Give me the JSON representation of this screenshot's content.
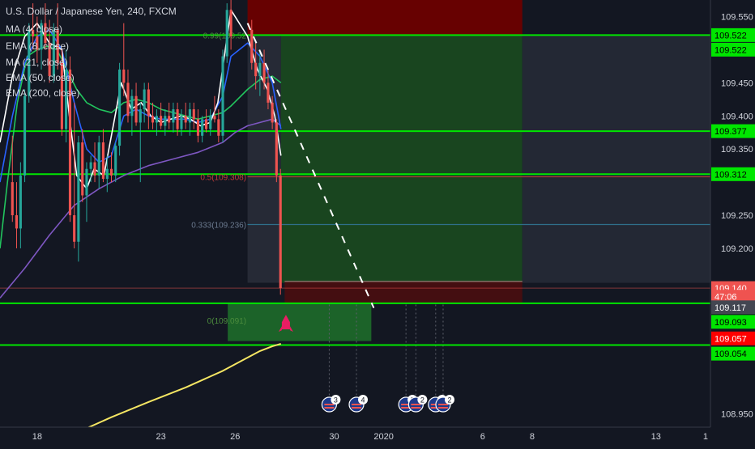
{
  "chart_data": {
    "type": "candlestick",
    "symbol_title": "U.S. Dollar / Japanese Yen, 240, FXCM",
    "indicators": [
      {
        "label": "MA (4, close)",
        "color": "#ffffff"
      },
      {
        "label": "EMA (8, close)",
        "color": "#2962ff"
      },
      {
        "label": "MA (21, close)",
        "color": "#22c55e"
      },
      {
        "label": "EMA (50, close)",
        "color": "#7e57c2"
      },
      {
        "label": "EMA (200, close)",
        "color": "#f5e663"
      }
    ],
    "ylim": [
      108.93,
      109.575
    ],
    "y_ticks": [
      {
        "label": "109.550",
        "value": 109.55
      },
      {
        "label": "109.450",
        "value": 109.45
      },
      {
        "label": "109.400",
        "value": 109.4
      },
      {
        "label": "109.350",
        "value": 109.35
      },
      {
        "label": "109.250",
        "value": 109.25
      },
      {
        "label": "109.200",
        "value": 109.2
      },
      {
        "label": "108.950",
        "value": 108.95
      }
    ],
    "x_ticks": [
      {
        "label": "18",
        "x": 18
      },
      {
        "label": "23",
        "x": 23
      },
      {
        "label": "26",
        "x": 26
      },
      {
        "label": "30",
        "x": 30
      },
      {
        "label": "2020",
        "x": 32
      },
      {
        "label": "6",
        "x": 36
      },
      {
        "label": "8",
        "x": 38
      },
      {
        "label": "13",
        "x": 43
      },
      {
        "label": "1",
        "x": 45
      }
    ],
    "xlim": [
      16.5,
      45.2
    ],
    "horizontal_levels": [
      {
        "value": 109.522,
        "color": "#00e600"
      },
      {
        "value": 109.377,
        "color": "#00e600"
      },
      {
        "value": 109.312,
        "color": "#00e600"
      },
      {
        "value": 109.117,
        "color": "#00e600"
      },
      {
        "value": 109.054,
        "color": "#00e600"
      }
    ],
    "price_tags": [
      {
        "label": "109.522",
        "value": 109.522,
        "bg": "#00e600",
        "fg": "#000000"
      },
      {
        "label": "109.522",
        "value": 109.5,
        "bg": "#00e600",
        "fg": "#000000"
      },
      {
        "label": "109.377",
        "value": 109.377,
        "bg": "#00e600",
        "fg": "#000000"
      },
      {
        "label": "109.312",
        "value": 109.312,
        "bg": "#00e600",
        "fg": "#000000"
      },
      {
        "label": "109.140",
        "value": 109.14,
        "bg": "#ef5350",
        "fg": "#ffffff"
      },
      {
        "label": "47:06",
        "value": 109.127,
        "bg": "#ef5350",
        "fg": "#ffffff"
      },
      {
        "label": "109.117",
        "value": 109.111,
        "bg": "#434651",
        "fg": "#ffffff"
      },
      {
        "label": "109.093",
        "value": 109.089,
        "bg": "#00e600",
        "fg": "#000000"
      },
      {
        "label": "109.057",
        "value": 109.064,
        "bg": "#ff0000",
        "fg": "#ffffff"
      },
      {
        "label": "109.054",
        "value": 109.041,
        "bg": "#00e600",
        "fg": "#000000"
      }
    ],
    "fib_levels": [
      {
        "label": "0.99(109.52",
        "value": 109.522
      },
      {
        "label": "0.5(109.308)",
        "value": 109.308
      },
      {
        "label": "0.333(109.236)",
        "value": 109.236
      },
      {
        "label": "0(109.091)",
        "value": 109.091
      }
    ],
    "candles": [
      {
        "x": 17.0,
        "o": 109.3,
        "h": 109.37,
        "l": 109.24,
        "c": 109.25
      },
      {
        "x": 17.17,
        "o": 109.25,
        "h": 109.3,
        "l": 109.2,
        "c": 109.23
      },
      {
        "x": 17.33,
        "o": 109.23,
        "h": 109.33,
        "l": 109.2,
        "c": 109.31
      },
      {
        "x": 17.5,
        "o": 109.31,
        "h": 109.44,
        "l": 109.3,
        "c": 109.43
      },
      {
        "x": 17.67,
        "o": 109.43,
        "h": 109.54,
        "l": 109.42,
        "c": 109.53
      },
      {
        "x": 17.83,
        "o": 109.53,
        "h": 109.57,
        "l": 109.5,
        "c": 109.52
      },
      {
        "x": 18.0,
        "o": 109.52,
        "h": 109.55,
        "l": 109.48,
        "c": 109.5
      },
      {
        "x": 18.17,
        "o": 109.5,
        "h": 109.545,
        "l": 109.47,
        "c": 109.54
      },
      {
        "x": 18.33,
        "o": 109.54,
        "h": 109.57,
        "l": 109.5,
        "c": 109.51
      },
      {
        "x": 18.5,
        "o": 109.51,
        "h": 109.545,
        "l": 109.45,
        "c": 109.46
      },
      {
        "x": 18.67,
        "o": 109.46,
        "h": 109.54,
        "l": 109.45,
        "c": 109.53
      },
      {
        "x": 18.83,
        "o": 109.53,
        "h": 109.57,
        "l": 109.47,
        "c": 109.48
      },
      {
        "x": 19.0,
        "o": 109.48,
        "h": 109.5,
        "l": 109.37,
        "c": 109.38
      },
      {
        "x": 19.17,
        "o": 109.38,
        "h": 109.5,
        "l": 109.36,
        "c": 109.47
      },
      {
        "x": 19.33,
        "o": 109.47,
        "h": 109.49,
        "l": 109.24,
        "c": 109.25
      },
      {
        "x": 19.5,
        "o": 109.25,
        "h": 109.42,
        "l": 109.2,
        "c": 109.21
      },
      {
        "x": 19.67,
        "o": 109.21,
        "h": 109.37,
        "l": 109.18,
        "c": 109.36
      },
      {
        "x": 19.83,
        "o": 109.36,
        "h": 109.38,
        "l": 109.27,
        "c": 109.28
      },
      {
        "x": 20.0,
        "o": 109.28,
        "h": 109.33,
        "l": 109.24,
        "c": 109.32
      },
      {
        "x": 20.17,
        "o": 109.32,
        "h": 109.34,
        "l": 109.3,
        "c": 109.33
      },
      {
        "x": 20.33,
        "o": 109.33,
        "h": 109.36,
        "l": 109.3,
        "c": 109.31
      },
      {
        "x": 20.5,
        "o": 109.31,
        "h": 109.37,
        "l": 109.29,
        "c": 109.36
      },
      {
        "x": 20.67,
        "o": 109.36,
        "h": 109.38,
        "l": 109.3,
        "c": 109.305
      },
      {
        "x": 20.83,
        "o": 109.305,
        "h": 109.34,
        "l": 109.285,
        "c": 109.32
      },
      {
        "x": 21.0,
        "o": 109.32,
        "h": 109.345,
        "l": 109.3,
        "c": 109.31
      },
      {
        "x": 21.17,
        "o": 109.31,
        "h": 109.36,
        "l": 109.3,
        "c": 109.355
      },
      {
        "x": 21.33,
        "o": 109.355,
        "h": 109.48,
        "l": 109.34,
        "c": 109.47
      },
      {
        "x": 21.5,
        "o": 109.47,
        "h": 109.54,
        "l": 109.43,
        "c": 109.45
      },
      {
        "x": 21.67,
        "o": 109.45,
        "h": 109.47,
        "l": 109.39,
        "c": 109.4
      },
      {
        "x": 21.83,
        "o": 109.4,
        "h": 109.44,
        "l": 109.37,
        "c": 109.43
      },
      {
        "x": 22.0,
        "o": 109.43,
        "h": 109.45,
        "l": 109.385,
        "c": 109.39
      },
      {
        "x": 22.17,
        "o": 109.39,
        "h": 109.42,
        "l": 109.3,
        "c": 109.41
      },
      {
        "x": 22.33,
        "o": 109.41,
        "h": 109.45,
        "l": 109.39,
        "c": 109.44
      },
      {
        "x": 22.5,
        "o": 109.44,
        "h": 109.45,
        "l": 109.38,
        "c": 109.4
      },
      {
        "x": 22.67,
        "o": 109.4,
        "h": 109.42,
        "l": 109.38,
        "c": 109.39
      },
      {
        "x": 22.83,
        "o": 109.39,
        "h": 109.41,
        "l": 109.37,
        "c": 109.4
      },
      {
        "x": 23.0,
        "o": 109.4,
        "h": 109.42,
        "l": 109.38,
        "c": 109.385
      },
      {
        "x": 23.17,
        "o": 109.385,
        "h": 109.41,
        "l": 109.37,
        "c": 109.4
      },
      {
        "x": 23.33,
        "o": 109.4,
        "h": 109.42,
        "l": 109.38,
        "c": 109.39
      },
      {
        "x": 23.5,
        "o": 109.39,
        "h": 109.42,
        "l": 109.375,
        "c": 109.41
      },
      {
        "x": 23.67,
        "o": 109.41,
        "h": 109.42,
        "l": 109.37,
        "c": 109.38
      },
      {
        "x": 23.83,
        "o": 109.38,
        "h": 109.41,
        "l": 109.37,
        "c": 109.4
      },
      {
        "x": 24.0,
        "o": 109.4,
        "h": 109.42,
        "l": 109.38,
        "c": 109.39
      },
      {
        "x": 24.17,
        "o": 109.39,
        "h": 109.42,
        "l": 109.37,
        "c": 109.41
      },
      {
        "x": 24.33,
        "o": 109.41,
        "h": 109.42,
        "l": 109.38,
        "c": 109.395
      },
      {
        "x": 24.5,
        "o": 109.395,
        "h": 109.41,
        "l": 109.36,
        "c": 109.37
      },
      {
        "x": 24.67,
        "o": 109.37,
        "h": 109.4,
        "l": 109.36,
        "c": 109.395
      },
      {
        "x": 24.83,
        "o": 109.395,
        "h": 109.41,
        "l": 109.375,
        "c": 109.38
      },
      {
        "x": 25.0,
        "o": 109.38,
        "h": 109.41,
        "l": 109.37,
        "c": 109.4
      },
      {
        "x": 25.17,
        "o": 109.4,
        "h": 109.43,
        "l": 109.39,
        "c": 109.395
      },
      {
        "x": 25.33,
        "o": 109.395,
        "h": 109.41,
        "l": 109.36,
        "c": 109.37
      },
      {
        "x": 25.5,
        "o": 109.37,
        "h": 109.5,
        "l": 109.36,
        "c": 109.49
      },
      {
        "x": 25.67,
        "o": 109.49,
        "h": 109.57,
        "l": 109.48,
        "c": 109.56
      },
      {
        "x": 25.83,
        "o": 109.56,
        "h": 109.575,
        "l": 109.5,
        "c": 109.52
      },
      {
        "x": 26.67,
        "o": 109.53,
        "h": 109.545,
        "l": 109.47,
        "c": 109.48
      },
      {
        "x": 26.83,
        "o": 109.48,
        "h": 109.51,
        "l": 109.44,
        "c": 109.46
      },
      {
        "x": 27.0,
        "o": 109.46,
        "h": 109.5,
        "l": 109.43,
        "c": 109.48
      },
      {
        "x": 27.17,
        "o": 109.48,
        "h": 109.5,
        "l": 109.44,
        "c": 109.45
      },
      {
        "x": 27.33,
        "o": 109.45,
        "h": 109.47,
        "l": 109.41,
        "c": 109.42
      },
      {
        "x": 27.5,
        "o": 109.42,
        "h": 109.43,
        "l": 109.38,
        "c": 109.39
      },
      {
        "x": 27.67,
        "o": 109.39,
        "h": 109.395,
        "l": 109.3,
        "c": 109.31
      },
      {
        "x": 27.83,
        "o": 109.31,
        "h": 109.32,
        "l": 109.13,
        "c": 109.14
      }
    ],
    "series": [
      {
        "name": "EMA (200, close)",
        "color": "#f5e663",
        "x": [
          19.5,
          21.0,
          22.5,
          24.0,
          25.5,
          26.5,
          27.0,
          27.5,
          27.85
        ],
        "y": [
          108.92,
          108.945,
          108.968,
          108.99,
          109.015,
          109.035,
          109.045,
          109.052,
          109.056
        ]
      },
      {
        "name": "EMA (50, close)",
        "color": "#7e57c2",
        "x": [
          16.5,
          17.5,
          18.5,
          19.5,
          20.5,
          21.5,
          22.5,
          23.5,
          24.5,
          25.5,
          26.0,
          26.5,
          27.0,
          27.5,
          27.85
        ],
        "y": [
          109.125,
          109.17,
          109.22,
          109.265,
          109.29,
          109.31,
          109.325,
          109.335,
          109.345,
          109.36,
          109.375,
          109.385,
          109.39,
          109.395,
          109.385
        ]
      },
      {
        "name": "MA (21, close)",
        "color": "#22c55e",
        "x": [
          16.5,
          16.8,
          17.2,
          17.6,
          18.0,
          18.4,
          18.8,
          19.2,
          19.6,
          20.0,
          20.5,
          21.0,
          21.5,
          22.0,
          22.5,
          23.0,
          23.5,
          24.0,
          24.5,
          25.0,
          25.5,
          25.83,
          26.5,
          27.0,
          27.5,
          27.85
        ],
        "y": [
          109.2,
          109.3,
          109.42,
          109.49,
          109.5,
          109.505,
          109.5,
          109.47,
          109.44,
          109.42,
          109.41,
          109.405,
          109.42,
          109.425,
          109.42,
          109.41,
          109.405,
          109.4,
          109.395,
          109.4,
          109.405,
          109.415,
          109.44,
          109.455,
          109.46,
          109.45
        ]
      },
      {
        "name": "EMA (8, close)",
        "color": "#2962ff",
        "x": [
          16.5,
          17.0,
          17.5,
          18.0,
          18.5,
          19.0,
          19.5,
          20.0,
          20.5,
          21.0,
          21.5,
          22.0,
          22.5,
          23.0,
          23.5,
          24.0,
          24.5,
          25.0,
          25.5,
          25.83,
          26.5,
          27.0,
          27.5,
          27.85
        ],
        "y": [
          109.3,
          109.4,
          109.48,
          109.52,
          109.53,
          109.5,
          109.42,
          109.35,
          109.33,
          109.34,
          109.4,
          109.41,
          109.4,
          109.395,
          109.395,
          109.395,
          109.39,
          109.395,
          109.43,
          109.49,
          109.51,
          109.49,
          109.45,
          109.38
        ]
      },
      {
        "name": "MA (4, close)",
        "color": "#ffffff",
        "x": [
          16.5,
          17.0,
          17.5,
          18.0,
          18.5,
          19.0,
          19.3,
          19.6,
          20.0,
          20.3,
          20.7,
          21.0,
          21.4,
          21.8,
          22.2,
          22.6,
          23.0,
          23.4,
          23.8,
          24.2,
          24.6,
          25.0,
          25.3,
          25.6,
          25.83,
          26.5,
          26.9,
          27.3,
          27.6,
          27.85
        ],
        "y": [
          109.36,
          109.46,
          109.52,
          109.54,
          109.51,
          109.5,
          109.4,
          109.31,
          109.29,
          109.32,
          109.31,
          109.37,
          109.45,
          109.41,
          109.42,
          109.4,
          109.39,
          109.395,
          109.4,
          109.395,
          109.385,
          109.39,
          109.42,
          109.5,
          109.56,
          109.52,
          109.47,
          109.44,
          109.4,
          109.34
        ]
      }
    ],
    "trend_line": {
      "x": [
        26.5,
        31.6
      ],
      "y": [
        109.54,
        109.11
      ]
    },
    "position_box": {
      "x_start": 26.5,
      "x_end": 37.6,
      "entry": 109.522,
      "target": 109.148,
      "stop": 109.575,
      "mid_split": 27.85
    },
    "green_zone": {
      "x_start": 25.7,
      "x_end": 31.5,
      "y_top": 109.117,
      "y_bottom": 109.06
    },
    "red_zone_lower": {
      "x_start": 28.0,
      "x_end": 31.5,
      "y_top": 109.15,
      "y_bottom": 109.117
    },
    "event_markers": [
      {
        "x": 29.8,
        "count": "3"
      },
      {
        "x": 30.9,
        "count": "4"
      },
      {
        "x": 32.9,
        "count": "3"
      },
      {
        "x": 33.3,
        "count": "2"
      },
      {
        "x": 34.1,
        "count": "7"
      },
      {
        "x": 34.4,
        "count": "2"
      }
    ],
    "rocket_marker": {
      "x": 28.05,
      "y": 109.085
    }
  }
}
